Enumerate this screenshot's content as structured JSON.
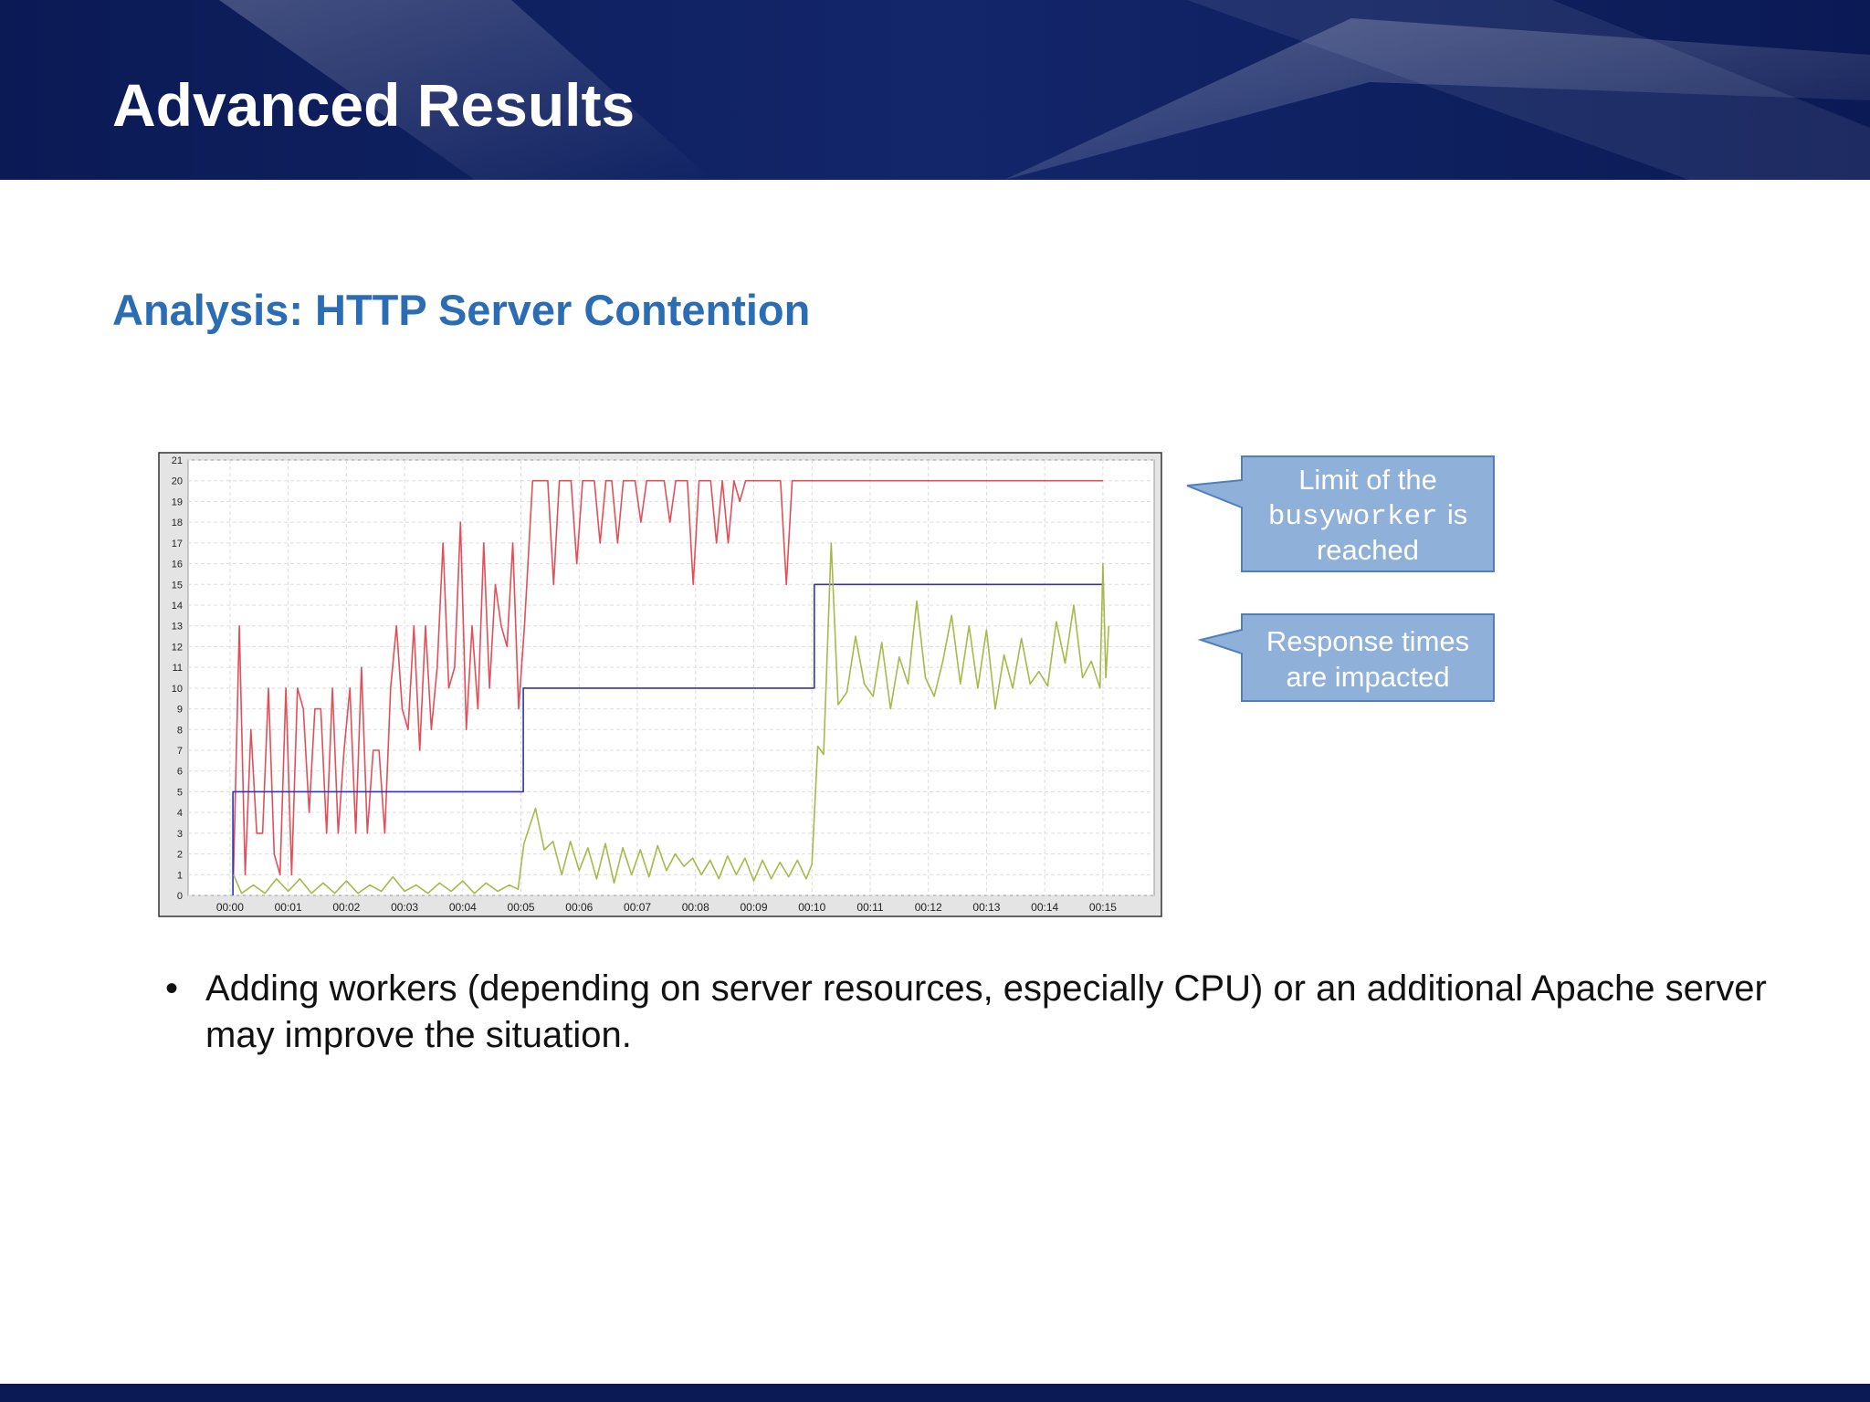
{
  "header": {
    "title": "Advanced Results"
  },
  "subtitle": "Analysis: HTTP Server Contention",
  "chart_data": {
    "type": "line",
    "xlim": [
      -0.72,
      15.88
    ],
    "ylim": [
      0,
      21
    ],
    "xticks": [
      {
        "value": 0,
        "label": "00:00"
      },
      {
        "value": 1,
        "label": "00:01"
      },
      {
        "value": 2,
        "label": "00:02"
      },
      {
        "value": 3,
        "label": "00:03"
      },
      {
        "value": 4,
        "label": "00:04"
      },
      {
        "value": 5,
        "label": "00:05"
      },
      {
        "value": 6,
        "label": "00:06"
      },
      {
        "value": 7,
        "label": "00:07"
      },
      {
        "value": 8,
        "label": "00:08"
      },
      {
        "value": 9,
        "label": "00:09"
      },
      {
        "value": 10,
        "label": "00:10"
      },
      {
        "value": 11,
        "label": "00:11"
      },
      {
        "value": 12,
        "label": "00:12"
      },
      {
        "value": 13,
        "label": "00:13"
      },
      {
        "value": 14,
        "label": "00:14"
      },
      {
        "value": 15,
        "label": "00:15"
      }
    ],
    "yticks": [
      0,
      1,
      2,
      3,
      4,
      5,
      6,
      7,
      8,
      9,
      10,
      11,
      12,
      13,
      14,
      15,
      16,
      17,
      18,
      19,
      20,
      21
    ],
    "grid": true,
    "series": [
      {
        "color": "#e0505a",
        "x": [
          0.06,
          0.16,
          0.26,
          0.36,
          0.46,
          0.56,
          0.66,
          0.76,
          0.86,
          0.96,
          1.06,
          1.16,
          1.26,
          1.36,
          1.46,
          1.56,
          1.66,
          1.76,
          1.86,
          1.96,
          2.06,
          2.16,
          2.26,
          2.36,
          2.46,
          2.56,
          2.66,
          2.76,
          2.86,
          2.96,
          3.06,
          3.16,
          3.26,
          3.36,
          3.46,
          3.56,
          3.66,
          3.76,
          3.86,
          3.96,
          4.06,
          4.16,
          4.26,
          4.36,
          4.46,
          4.56,
          4.66,
          4.76,
          4.86,
          4.96,
          5.06,
          5.2,
          5.3,
          5.46,
          5.56,
          5.66,
          5.86,
          5.96,
          6.06,
          6.26,
          6.36,
          6.46,
          6.56,
          6.66,
          6.76,
          6.96,
          7.06,
          7.16,
          7.46,
          7.56,
          7.66,
          7.86,
          7.96,
          8.06,
          8.26,
          8.36,
          8.46,
          8.56,
          8.66,
          8.76,
          8.86,
          9.46,
          9.56,
          9.66,
          15.0
        ],
        "values": [
          1,
          13,
          1,
          8,
          3,
          3,
          10,
          2,
          1,
          10,
          1,
          10,
          9,
          4,
          9,
          9,
          3,
          10,
          3,
          7,
          10,
          3,
          11,
          3,
          7,
          7,
          3,
          10,
          13,
          9,
          8,
          13,
          7,
          13,
          8,
          11,
          17,
          10,
          11,
          18,
          8,
          13,
          9,
          17,
          10,
          15,
          13,
          12,
          17,
          9,
          13,
          20,
          20,
          20,
          15,
          20,
          20,
          16,
          20,
          20,
          17,
          20,
          20,
          17,
          20,
          20,
          18,
          20,
          20,
          18,
          20,
          20,
          15,
          20,
          20,
          17,
          20,
          17,
          20,
          19,
          20,
          20,
          15,
          20,
          20
        ]
      },
      {
        "color": "#3333aa",
        "x": [
          0.05,
          0.05,
          5.04,
          5.04,
          10.04,
          10.04,
          15.02
        ],
        "values": [
          0,
          5,
          5,
          10,
          10,
          15,
          15
        ]
      },
      {
        "color": "#a8b84a",
        "x": [
          0.06,
          0.2,
          0.4,
          0.6,
          0.8,
          1.0,
          1.2,
          1.4,
          1.6,
          1.8,
          2.0,
          2.2,
          2.4,
          2.6,
          2.8,
          3.0,
          3.2,
          3.4,
          3.6,
          3.8,
          4.0,
          4.2,
          4.4,
          4.6,
          4.8,
          4.95,
          5.05,
          5.25,
          5.4,
          5.55,
          5.7,
          5.85,
          6.0,
          6.15,
          6.3,
          6.45,
          6.6,
          6.75,
          6.9,
          7.05,
          7.2,
          7.35,
          7.5,
          7.65,
          7.8,
          7.95,
          8.1,
          8.25,
          8.4,
          8.55,
          8.7,
          8.85,
          9.0,
          9.15,
          9.3,
          9.45,
          9.6,
          9.75,
          9.9,
          10.0,
          10.1,
          10.2,
          10.33,
          10.45,
          10.6,
          10.75,
          10.9,
          11.05,
          11.2,
          11.35,
          11.5,
          11.65,
          11.8,
          11.95,
          12.1,
          12.25,
          12.4,
          12.55,
          12.7,
          12.85,
          13.0,
          13.15,
          13.3,
          13.45,
          13.6,
          13.75,
          13.9,
          14.05,
          14.2,
          14.35,
          14.5,
          14.65,
          14.8,
          14.95,
          15.0,
          15.05,
          15.1
        ],
        "values": [
          1,
          0.1,
          0.5,
          0.1,
          0.8,
          0.2,
          0.8,
          0.1,
          0.6,
          0.1,
          0.7,
          0.1,
          0.5,
          0.2,
          0.9,
          0.2,
          0.5,
          0.1,
          0.6,
          0.2,
          0.7,
          0.1,
          0.6,
          0.2,
          0.5,
          0.3,
          2.5,
          4.2,
          2.2,
          2.6,
          1.0,
          2.6,
          1.2,
          2.3,
          0.8,
          2.5,
          0.6,
          2.3,
          1.0,
          2.2,
          0.9,
          2.4,
          1.2,
          2.0,
          1.4,
          1.8,
          1.0,
          1.7,
          0.8,
          1.9,
          1.0,
          1.8,
          0.7,
          1.7,
          0.8,
          1.6,
          0.9,
          1.7,
          0.8,
          1.5,
          7.2,
          6.8,
          17,
          9.2,
          9.8,
          12.5,
          10.2,
          9.6,
          12.2,
          9.0,
          11.5,
          10.2,
          14.2,
          10.5,
          9.6,
          11.3,
          13.5,
          10.2,
          13.0,
          10.0,
          12.8,
          9.0,
          11.6,
          10.0,
          12.4,
          10.2,
          10.8,
          10.1,
          13.2,
          11.2,
          14.0,
          10.5,
          11.3,
          10.0,
          16,
          10.5,
          13
        ]
      }
    ]
  },
  "callouts": [
    {
      "line1": "Limit of the",
      "code": "busyworker",
      "after": "is",
      "line3": "reached"
    },
    {
      "lines": [
        "Response times",
        "are impacted"
      ]
    }
  ],
  "bullets": [
    "Adding workers (depending on server resources, especially CPU) or an additional Apache server may improve the situation."
  ]
}
